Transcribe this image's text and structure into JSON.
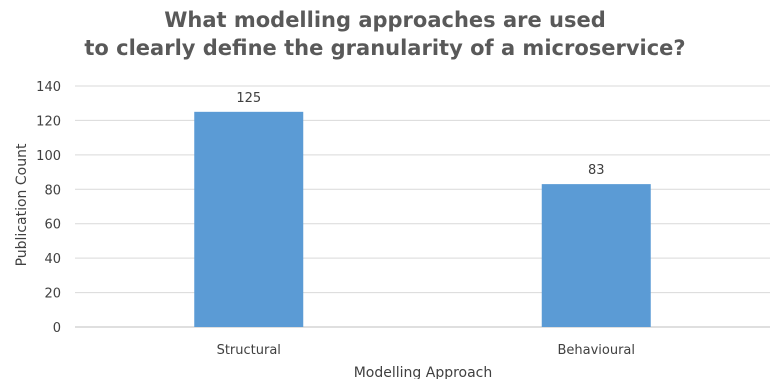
{
  "chart_data": {
    "type": "bar",
    "title_lines": [
      "What modelling approaches are used",
      "to clearly define the granularity of a microservice?"
    ],
    "xlabel": "Modelling Approach",
    "ylabel": "Publication Count",
    "categories": [
      "Structural",
      "Behavioural"
    ],
    "values": [
      125,
      83
    ],
    "data_labels": [
      "125",
      "83"
    ],
    "ylim": [
      0,
      140
    ],
    "yticks": [
      0,
      20,
      40,
      60,
      80,
      100,
      120,
      140
    ],
    "grid": true,
    "legend": "none",
    "bar_color": "#5b9bd5"
  }
}
